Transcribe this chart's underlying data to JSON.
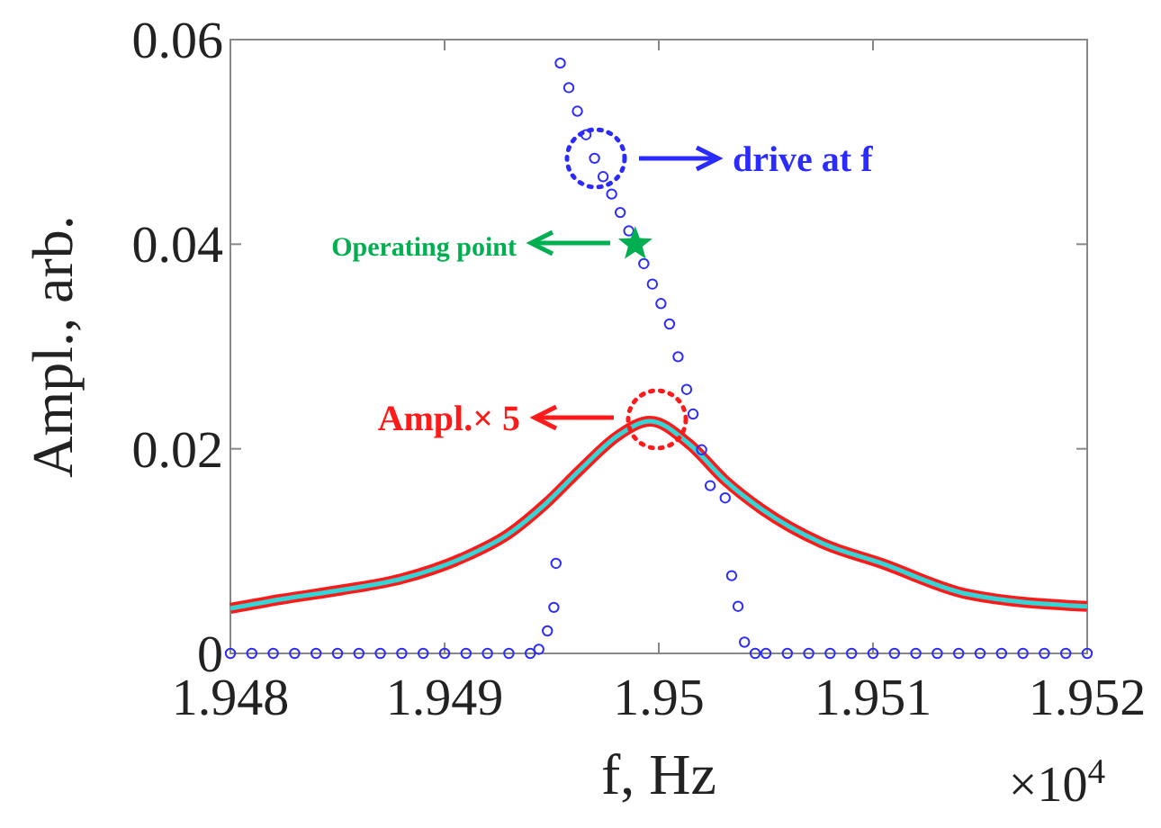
{
  "chart_data": {
    "type": "scatter",
    "xlabel": "f, Hz",
    "ylabel": "Ampl., arb.",
    "xlim": [
      1.948,
      1.952
    ],
    "xticks": [
      1.948,
      1.949,
      1.95,
      1.951,
      1.952
    ],
    "ylim": [
      0,
      0.06
    ],
    "yticks": [
      0,
      0.02,
      0.04,
      0.06
    ],
    "grid": false,
    "series": [
      {
        "type": "scatter",
        "marker": "circle",
        "color": "#2b2bff",
        "x": [
          1.948,
          1.9481,
          1.9482,
          1.9483,
          1.9484,
          1.9485,
          1.9486,
          1.9487,
          1.9488,
          1.9489,
          1.949,
          1.9491,
          1.9492,
          1.9493,
          1.9494,
          1.94944,
          1.94948,
          1.94951,
          1.94952,
          1.94954,
          1.94958,
          1.94962,
          1.94966,
          1.9497,
          1.94974,
          1.94978,
          1.94982,
          1.94986,
          1.94993,
          1.94997,
          1.95001,
          1.95005,
          1.95009,
          1.95013,
          1.95016,
          1.9502,
          1.95024,
          1.95031,
          1.95034,
          1.95037,
          1.9504,
          1.95045,
          1.9505,
          1.9506,
          1.9507,
          1.9508,
          1.9509,
          1.951,
          1.9511,
          1.9512,
          1.9513,
          1.9514,
          1.9515,
          1.9516,
          1.9517,
          1.9518,
          1.9519,
          1.952
        ],
        "values": [
          0,
          0,
          0,
          0,
          0,
          0,
          0,
          0,
          0,
          0,
          0,
          0,
          0,
          0,
          0,
          0.0004,
          0.0022,
          0.0045,
          0.0088,
          0.0577,
          0.0553,
          0.053,
          0.0507,
          0.0484,
          0.0466,
          0.0449,
          0.0431,
          0.0413,
          0.0381,
          0.0361,
          0.0342,
          0.0322,
          0.029,
          0.0258,
          0.0234,
          0.0199,
          0.0164,
          0.0152,
          0.0076,
          0.0046,
          0.0011,
          0,
          0,
          0,
          0,
          0,
          0,
          0,
          0,
          0,
          0,
          0,
          0,
          0,
          0,
          0,
          0,
          0
        ]
      },
      {
        "type": "line",
        "marker": "none",
        "line_style": "solid",
        "color": "#ff1a1a",
        "x": [
          1.948,
          1.94824,
          1.94852,
          1.9488,
          1.94908,
          1.9493,
          1.94947,
          1.94964,
          1.94981,
          1.94996,
          1.95014,
          1.95031,
          1.95048,
          1.95076,
          1.95104,
          1.95144,
          1.952
        ],
        "values": [
          0.0044,
          0.0053,
          0.0062,
          0.0073,
          0.0093,
          0.0117,
          0.0146,
          0.0181,
          0.0213,
          0.0227,
          0.0205,
          0.0169,
          0.0141,
          0.0108,
          0.0088,
          0.0058,
          0.0046
        ]
      },
      {
        "type": "line",
        "marker": "none",
        "line_style": "solid",
        "color": "#33d6d6",
        "x": [
          1.948,
          1.94824,
          1.94852,
          1.9488,
          1.94908,
          1.9493,
          1.94947,
          1.94964,
          1.94981,
          1.94996,
          1.95014,
          1.95031,
          1.95048,
          1.95076,
          1.95104,
          1.95144,
          1.952
        ],
        "values": [
          0.0044,
          0.0053,
          0.0062,
          0.0073,
          0.0093,
          0.0117,
          0.0146,
          0.0181,
          0.0213,
          0.0227,
          0.0205,
          0.0169,
          0.0141,
          0.0108,
          0.0088,
          0.0058,
          0.0046
        ]
      },
      {
        "type": "scatter",
        "marker": "star",
        "color": "#00b050",
        "x": [
          1.94989
        ],
        "values": [
          0.04
        ]
      }
    ],
    "annotations": [
      "drive at f",
      "Operating point",
      "Ampl.× 5",
      "×10$^{4}$"
    ]
  }
}
